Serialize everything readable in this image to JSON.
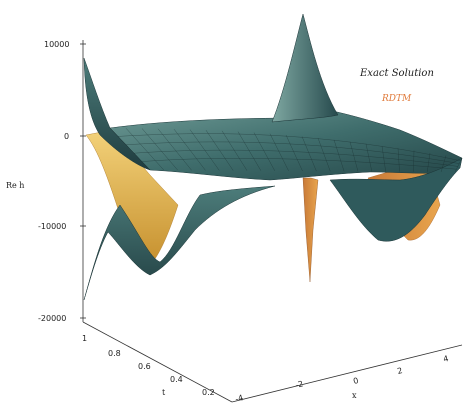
{
  "chart_data": {
    "type": "surface",
    "title": "",
    "zlabel": "Re h",
    "z_ticks": [
      10000,
      0,
      -10000,
      -20000
    ],
    "t_ticks": [
      "1",
      "0.8",
      "0.6",
      "0.4",
      "0.2"
    ],
    "t_label": "t",
    "x_ticks": [
      "-4",
      "-2",
      "0",
      "2",
      "4"
    ],
    "x_label": "x",
    "zlim": [
      -20000,
      10000
    ],
    "legend": {
      "placement": "top-right"
    },
    "series": [
      {
        "name": "Exact Solution",
        "color": "#2f5a5c"
      },
      {
        "name": "RDTM",
        "color": "#e07a3a"
      }
    ]
  }
}
